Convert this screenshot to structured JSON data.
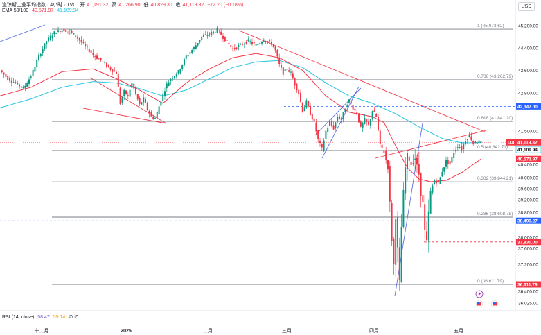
{
  "header": {
    "symbol": "道琼斯工业平均指数 · 4小时 · TVC",
    "open_label": "开",
    "open": "41,191.32",
    "high_label": "高",
    "high": "41,266.90",
    "low_label": "低",
    "low": "40,829.30",
    "close_label": "收",
    "close": "41,119.32",
    "change": "−72.20 (−0.18%)",
    "ema_label": "EMA 50/100",
    "ema50": "40,571.97",
    "ema100": "41,109.94",
    "currency": "USD"
  },
  "rsi": {
    "label": "RSI (14, close)",
    "value": "58.47",
    "value2": "59.14",
    "extra": "∅ ∅"
  },
  "colors": {
    "up": "#089981",
    "down": "#f23645",
    "ema50": "#f23645",
    "ema100": "#22c5e0",
    "trend": "#5b6ee1",
    "fib": "#787b86",
    "dashed_blue": "#2962ff",
    "dashed_red": "#f23645"
  },
  "chart_data": {
    "type": "candlestick",
    "x_labels": [
      "十二月",
      "2025",
      "二月",
      "三月",
      "四月",
      "五月"
    ],
    "y_ticks": [
      "45,200.00",
      "44,400.00",
      "43,600.00",
      "42,800.00",
      "41,500.00",
      "40,400.00",
      "40,000.00",
      "39,600.00",
      "39,200.00",
      "38,800.00",
      "38,000.00",
      "37,600.00",
      "37,200.00",
      "36,400.00",
      "36,025.00"
    ],
    "fib_levels": [
      {
        "ratio": "1",
        "price": 45073.62,
        "label": "1 (45,073.62)"
      },
      {
        "ratio": "0.786",
        "price": 43262.79,
        "label": "0.786 (43,262.79)"
      },
      {
        "ratio": "0.618",
        "price": 41841.2,
        "label": "0.618 (41,841.20)"
      },
      {
        "ratio": "0.5",
        "price": 40842.71,
        "label": "0.5 (40,842.71)"
      },
      {
        "ratio": "0.382",
        "price": 39844.21,
        "label": "0.382 (39,844.21)"
      },
      {
        "ratio": "0.236",
        "price": 38608.78,
        "label": "0.236 (38,608.78)"
      },
      {
        "ratio": "0",
        "price": 36611.79,
        "label": "0 (36,611.79)"
      }
    ],
    "price_tags": [
      {
        "price": 42347.0,
        "label": "42,347.00",
        "color": "#2962ff"
      },
      {
        "price": 41119.32,
        "label": "41,119.32",
        "color": "#f23645",
        "prefix": "DJI"
      },
      {
        "price": 41109.94,
        "label": "41,109.94",
        "color": "#22c5e0"
      },
      {
        "price": 40571.97,
        "label": "40,571.97",
        "color": "#f23645"
      },
      {
        "price": 38499.27,
        "label": "38,499.27",
        "color": "#2962ff"
      },
      {
        "price": 37830.0,
        "label": "37,830.00",
        "color": "#f23645"
      },
      {
        "price": 36611.79,
        "label": "36,611.79",
        "color": "#f23645"
      }
    ],
    "path_points": [
      [
        0,
        43600
      ],
      [
        4,
        43300
      ],
      [
        8,
        43150
      ],
      [
        12,
        42950
      ],
      [
        16,
        43400
      ],
      [
        20,
        44100
      ],
      [
        24,
        44650
      ],
      [
        28,
        44950
      ],
      [
        32,
        45050
      ],
      [
        36,
        45000
      ],
      [
        40,
        44750
      ],
      [
        44,
        44450
      ],
      [
        48,
        44150
      ],
      [
        52,
        43950
      ],
      [
        56,
        43700
      ],
      [
        60,
        43500
      ],
      [
        62,
        42450
      ],
      [
        64,
        42850
      ],
      [
        66,
        42700
      ],
      [
        68,
        43150
      ],
      [
        70,
        42750
      ],
      [
        72,
        42400
      ],
      [
        74,
        42600
      ],
      [
        76,
        42250
      ],
      [
        78,
        42000
      ],
      [
        80,
        41950
      ],
      [
        82,
        42350
      ],
      [
        84,
        42750
      ],
      [
        86,
        43100
      ],
      [
        88,
        43300
      ],
      [
        92,
        43550
      ],
      [
        96,
        44100
      ],
      [
        100,
        44400
      ],
      [
        104,
        44800
      ],
      [
        108,
        44900
      ],
      [
        112,
        45050
      ],
      [
        116,
        44700
      ],
      [
        120,
        44350
      ],
      [
        124,
        44500
      ],
      [
        128,
        44650
      ],
      [
        132,
        44500
      ],
      [
        136,
        44700
      ],
      [
        140,
        44550
      ],
      [
        142,
        44300
      ],
      [
        144,
        43800
      ],
      [
        146,
        43500
      ],
      [
        148,
        43650
      ],
      [
        150,
        43500
      ],
      [
        152,
        43100
      ],
      [
        154,
        42800
      ],
      [
        156,
        42200
      ],
      [
        158,
        42500
      ],
      [
        160,
        42100
      ],
      [
        162,
        41800
      ],
      [
        164,
        41200
      ],
      [
        166,
        40900
      ],
      [
        168,
        41500
      ],
      [
        170,
        41800
      ],
      [
        172,
        41600
      ],
      [
        174,
        42000
      ],
      [
        176,
        41900
      ],
      [
        178,
        42300
      ],
      [
        180,
        42550
      ],
      [
        182,
        42300
      ],
      [
        184,
        42100
      ],
      [
        186,
        41600
      ],
      [
        188,
        41900
      ],
      [
        190,
        41700
      ],
      [
        192,
        42200
      ],
      [
        194,
        42000
      ],
      [
        196,
        41000
      ],
      [
        198,
        40800
      ],
      [
        200,
        40300
      ],
      [
        202,
        37900
      ],
      [
        203,
        37200
      ],
      [
        204,
        38600
      ],
      [
        205,
        37600
      ],
      [
        206,
        36700
      ],
      [
        207,
        38300
      ],
      [
        208,
        39500
      ],
      [
        209,
        40300
      ],
      [
        210,
        40700
      ],
      [
        212,
        40400
      ],
      [
        214,
        40600
      ],
      [
        216,
        40100
      ],
      [
        217,
        39400
      ],
      [
        218,
        39100
      ],
      [
        219,
        38200
      ],
      [
        220,
        37850
      ],
      [
        221,
        38800
      ],
      [
        222,
        39500
      ],
      [
        224,
        39900
      ],
      [
        226,
        39800
      ],
      [
        228,
        40200
      ],
      [
        230,
        40500
      ],
      [
        232,
        40400
      ],
      [
        234,
        40800
      ],
      [
        236,
        41000
      ],
      [
        238,
        40900
      ],
      [
        240,
        41200
      ],
      [
        242,
        41350
      ],
      [
        244,
        41100
      ],
      [
        246,
        41150
      ],
      [
        248,
        41119
      ]
    ],
    "ema50_points": [
      [
        0,
        42700
      ],
      [
        16,
        43000
      ],
      [
        32,
        43550
      ],
      [
        48,
        43650
      ],
      [
        60,
        43300
      ],
      [
        72,
        42900
      ],
      [
        84,
        42450
      ],
      [
        96,
        43150
      ],
      [
        108,
        43650
      ],
      [
        120,
        44050
      ],
      [
        132,
        44200
      ],
      [
        144,
        44050
      ],
      [
        156,
        43600
      ],
      [
        168,
        42700
      ],
      [
        180,
        42150
      ],
      [
        192,
        42000
      ],
      [
        198,
        41800
      ],
      [
        204,
        41000
      ],
      [
        210,
        40300
      ],
      [
        216,
        39950
      ],
      [
        222,
        39850
      ],
      [
        230,
        39900
      ],
      [
        238,
        40150
      ],
      [
        248,
        40572
      ]
    ],
    "ema100_points": [
      [
        0,
        42300
      ],
      [
        16,
        42600
      ],
      [
        32,
        43000
      ],
      [
        48,
        43200
      ],
      [
        60,
        43150
      ],
      [
        72,
        42950
      ],
      [
        84,
        42700
      ],
      [
        96,
        42900
      ],
      [
        108,
        43300
      ],
      [
        120,
        43700
      ],
      [
        132,
        43900
      ],
      [
        144,
        43950
      ],
      [
        156,
        43700
      ],
      [
        168,
        43150
      ],
      [
        180,
        42700
      ],
      [
        192,
        42450
      ],
      [
        204,
        42100
      ],
      [
        216,
        41650
      ],
      [
        228,
        41250
      ],
      [
        238,
        41100
      ],
      [
        248,
        41110
      ]
    ]
  }
}
